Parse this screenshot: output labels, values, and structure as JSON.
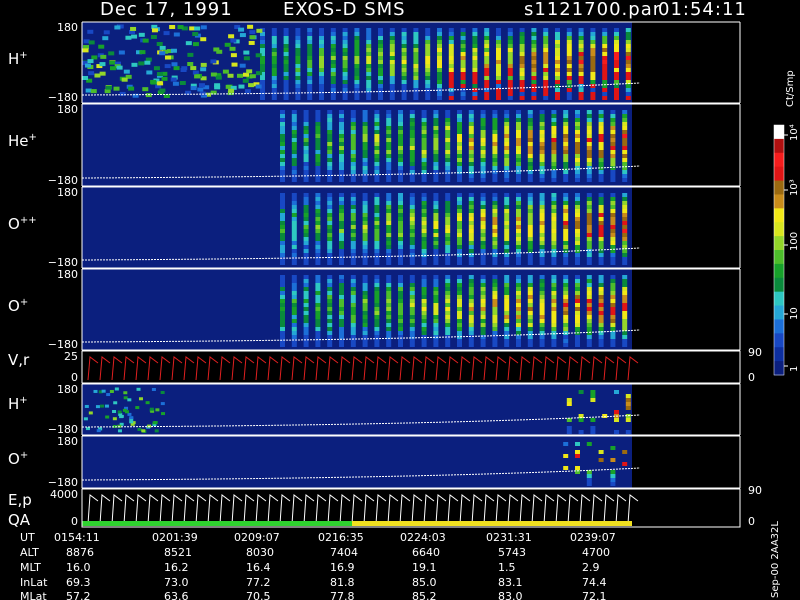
{
  "header": {
    "date": "Dec 17, 1991",
    "instrument": "EXOS-D SMS",
    "file": "s1121700.par",
    "time": "01:54:11"
  },
  "panels": [
    {
      "label": "H",
      "sup": "+",
      "top_tick": "180",
      "bottom_tick": "−180",
      "species": "H+"
    },
    {
      "label": "He",
      "sup": "+",
      "top_tick": "180",
      "bottom_tick": "−180",
      "species": "He+"
    },
    {
      "label": "O",
      "sup": "++",
      "top_tick": "180",
      "bottom_tick": "−180",
      "species": "O++"
    },
    {
      "label": "O",
      "sup": "+",
      "top_tick": "180",
      "bottom_tick": "−180",
      "species": "O+"
    },
    {
      "label": "V,r",
      "sup": "",
      "top_tick": "25",
      "bottom_tick": "0",
      "right_top": "90",
      "right_bottom": "0",
      "species": "V,r"
    },
    {
      "label": "H",
      "sup": "+",
      "top_tick": "180",
      "bottom_tick": "−180",
      "species": "H+ (low)"
    },
    {
      "label": "O",
      "sup": "+",
      "top_tick": "180",
      "bottom_tick": "−180",
      "species": "O+ (low)"
    },
    {
      "label": "E,p",
      "sup": "",
      "label2": "QA",
      "top_tick": "4000",
      "bottom_tick": "0",
      "right_top": "90",
      "right_bottom": "0",
      "species": "E,p"
    }
  ],
  "colorbar": {
    "unit_label": "Ct/Smp",
    "ticks": [
      "1",
      "10",
      "100",
      "10³",
      "10⁴"
    ],
    "colors": [
      "#0b1f7e",
      "#0d2fa0",
      "#1848c4",
      "#1c6fd8",
      "#25a7d6",
      "#2ec7c2",
      "#0a8a3c",
      "#17a12a",
      "#4dbd2b",
      "#93d62a",
      "#d8e61f",
      "#f2e817",
      "#c98c1a",
      "#9b6a10",
      "#e01515",
      "#f51d1d",
      "#b01010",
      "#ffffff"
    ]
  },
  "stamp": "Sep-00  2AA32L",
  "footer": {
    "row_labels": [
      "UT",
      "ALT",
      "MLT",
      "InLat",
      "MLat"
    ],
    "columns": [
      [
        "0154:11",
        "8876",
        "16.0",
        "69.3",
        "57.2"
      ],
      [
        "0201:39",
        "8521",
        "16.2",
        "73.0",
        "63.6"
      ],
      [
        "0209:07",
        "8030",
        "16.4",
        "77.2",
        "70.5"
      ],
      [
        "0216:35",
        "7404",
        "16.9",
        "81.8",
        "77.8"
      ],
      [
        "0224:03",
        "6640",
        "19.1",
        "85.0",
        "85.2"
      ],
      [
        "0231:31",
        "5743",
        "1.5",
        "83.1",
        "83.0"
      ],
      [
        "0239:07",
        "4700",
        "2.9",
        "74.4",
        "72.1"
      ]
    ]
  },
  "chart_data": {
    "type": "heatmap",
    "title": "Dec 17, 1991   EXOS-D SMS",
    "x_label": "UT",
    "x_ticks": [
      "0154:11",
      "0201:39",
      "0209:07",
      "0216:35",
      "0224:03",
      "0231:31",
      "0239:07"
    ],
    "y_range_deg": [
      -180,
      180
    ],
    "colorscale": "log",
    "colorbar_range": [
      1,
      10000
    ],
    "colorbar_unit": "Ct/Smp",
    "series": [
      {
        "name": "H+",
        "ylim": [
          -180,
          180
        ]
      },
      {
        "name": "He+",
        "ylim": [
          -180,
          180
        ]
      },
      {
        "name": "O++",
        "ylim": [
          -180,
          180
        ]
      },
      {
        "name": "O+",
        "ylim": [
          -180,
          180
        ]
      },
      {
        "name": "V,r",
        "ylim": [
          0,
          25
        ],
        "y2lim": [
          0,
          90
        ]
      },
      {
        "name": "H+",
        "ylim": [
          -180,
          180
        ]
      },
      {
        "name": "O+",
        "ylim": [
          -180,
          180
        ]
      },
      {
        "name": "E,p",
        "ylim": [
          0,
          4000
        ],
        "y2lim": [
          0,
          90
        ]
      }
    ]
  }
}
